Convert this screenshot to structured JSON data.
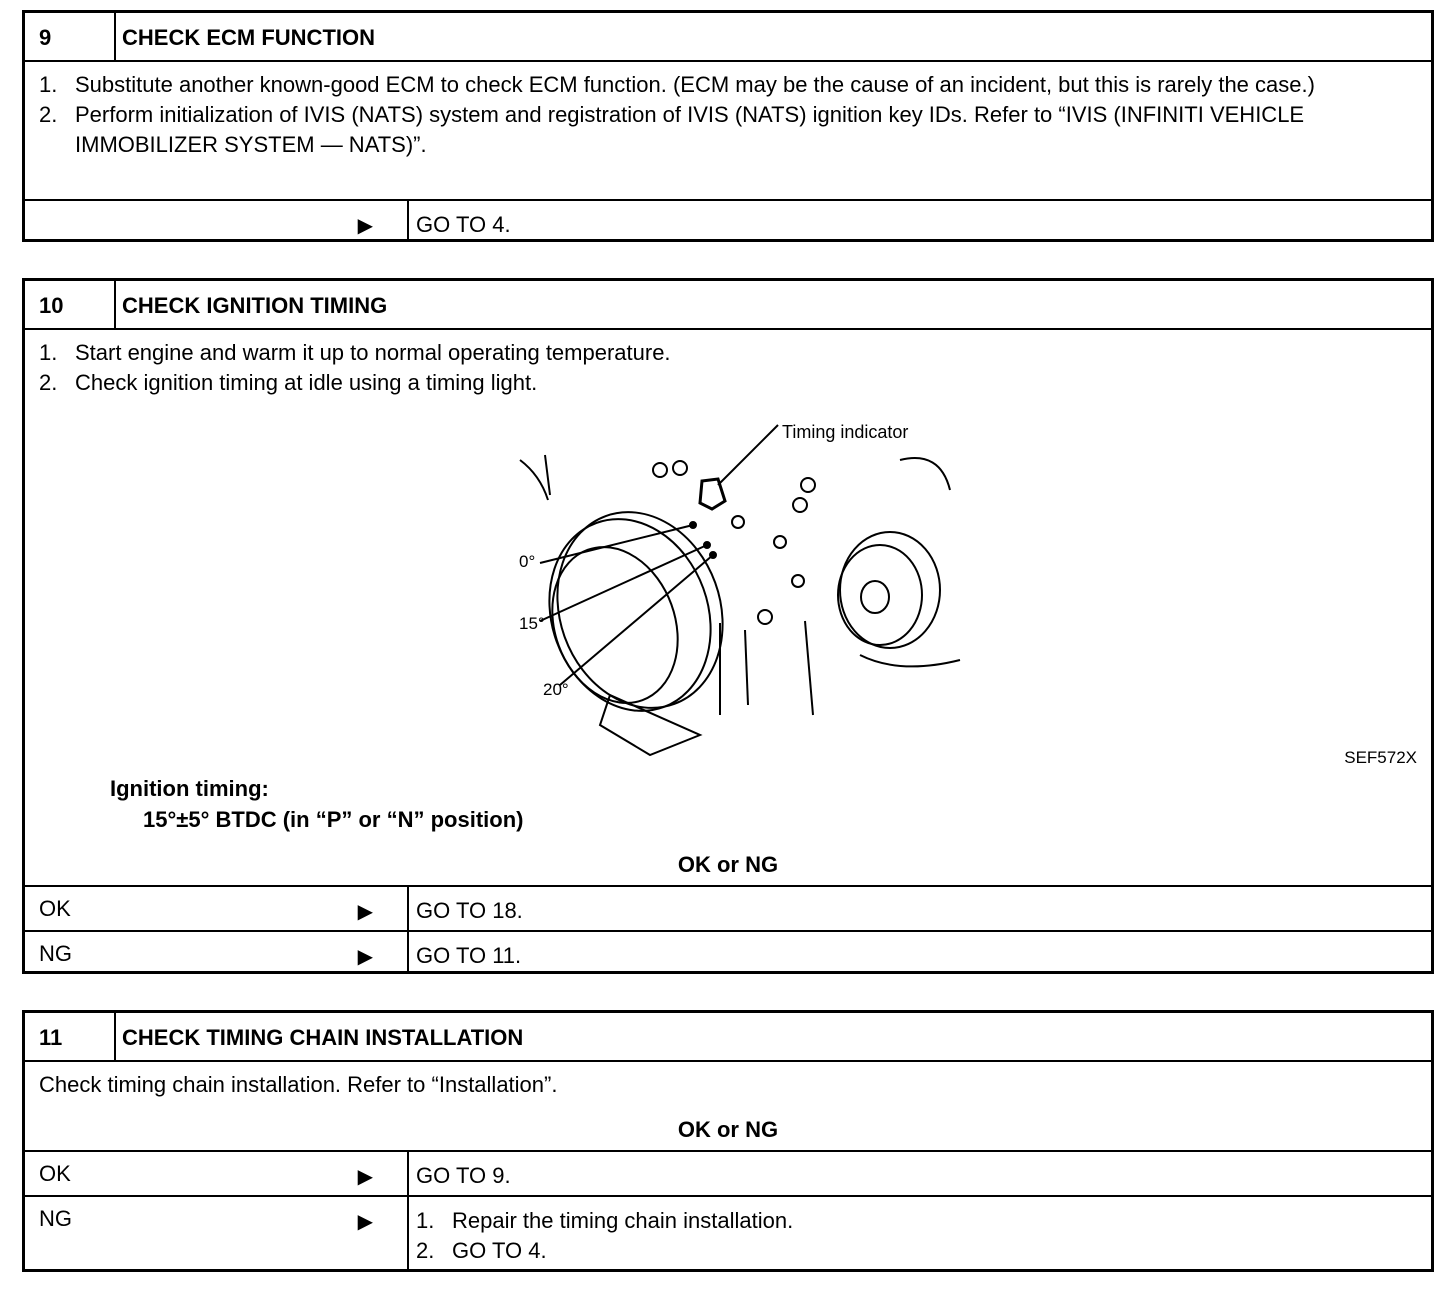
{
  "steps": [
    {
      "number": "9",
      "title": "CHECK ECM FUNCTION",
      "instructions": [
        {
          "n": "1.",
          "text": "Substitute another known-good ECM to check ECM function. (ECM may be the cause of an incident, but this is rarely the case.)"
        },
        {
          "n": "2.",
          "text": "Perform initialization of IVIS (NATS) system and registration of IVIS (NATS) ignition key IDs. Refer to “IVIS (INFINITI VEHICLE IMMOBILIZER SYSTEM — NATS)”."
        }
      ],
      "results": [
        {
          "label": "",
          "arrow": "▶",
          "action": "GO TO 4."
        }
      ]
    },
    {
      "number": "10",
      "title": "CHECK IGNITION TIMING",
      "instructions": [
        {
          "n": "1.",
          "text": "Start engine and warm it up to normal operating temperature."
        },
        {
          "n": "2.",
          "text": "Check ignition timing at idle using a timing light."
        }
      ],
      "figure": {
        "labels": {
          "indicator": "Timing indicator",
          "deg0": "0°",
          "deg15": "15°",
          "deg20": "20°"
        },
        "code": "SEF572X"
      },
      "spec_label": "Ignition timing:",
      "spec_value": "15°±5° BTDC (in “P” or “N” position)",
      "okng": "OK or NG",
      "results": [
        {
          "label": "OK",
          "arrow": "▶",
          "action": "GO TO 18."
        },
        {
          "label": "NG",
          "arrow": "▶",
          "action": "GO TO 11."
        }
      ]
    },
    {
      "number": "11",
      "title": "CHECK TIMING CHAIN INSTALLATION",
      "text": "Check timing chain installation. Refer to “Installation”.",
      "okng": "OK or NG",
      "results": [
        {
          "label": "OK",
          "arrow": "▶",
          "action": "GO TO 9."
        },
        {
          "label": "NG",
          "arrow": "▶",
          "actions": [
            {
              "n": "1.",
              "text": "Repair the timing chain installation."
            },
            {
              "n": "2.",
              "text": "GO TO 4."
            }
          ]
        }
      ]
    }
  ]
}
